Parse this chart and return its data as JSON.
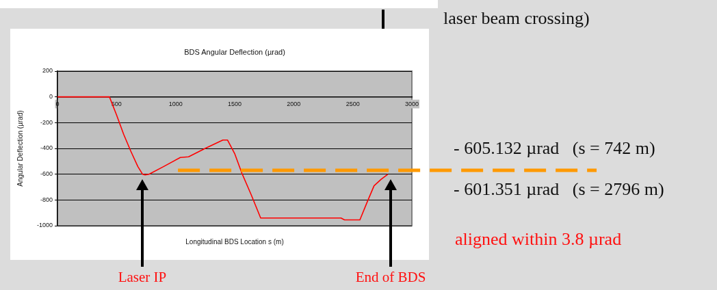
{
  "chart_data": {
    "type": "line",
    "title": "BDS Angular Deflection (µrad)",
    "xlabel": "Longitudinal BDS Location s (m)",
    "ylabel": "Angular Deflection (µrad)",
    "x": [
      0,
      440,
      500,
      560,
      620,
      680,
      720,
      742,
      775,
      900,
      1040,
      1110,
      1250,
      1400,
      1440,
      1500,
      1560,
      1640,
      1720,
      2000,
      2400,
      2430,
      2560,
      2620,
      2680,
      2740,
      2796
    ],
    "series": [
      {
        "color": "#ff0000",
        "values": [
          0,
          0,
          -140,
          -290,
          -420,
          -540,
          -600,
          -605,
          -600,
          -540,
          -470,
          -465,
          -400,
          -335,
          -335,
          -440,
          -590,
          -760,
          -940,
          -940,
          -940,
          -955,
          -955,
          -820,
          -690,
          -640,
          -601
        ]
      }
    ],
    "xlim": [
      0,
      3000
    ],
    "xticks": [
      0,
      500,
      1000,
      1500,
      2000,
      2500,
      3000
    ],
    "ylim": [
      -1000,
      200
    ],
    "yticks": [
      -1000,
      -800,
      -600,
      -400,
      -200,
      0,
      200
    ],
    "grid": "y",
    "marker": "none",
    "line_style": "solid",
    "ref_lines": [
      {
        "axis": "y",
        "value": -570,
        "color": "#ff9900",
        "line_style": "dashed"
      }
    ],
    "annotations": [
      "laser beam crossing)",
      "- 605.132 µrad   (s = 742 m)",
      "- 601.351 µrad   (s = 2796 m)",
      "aligned within 3.8 µrad",
      "Laser IP",
      "End of BDS"
    ]
  }
}
